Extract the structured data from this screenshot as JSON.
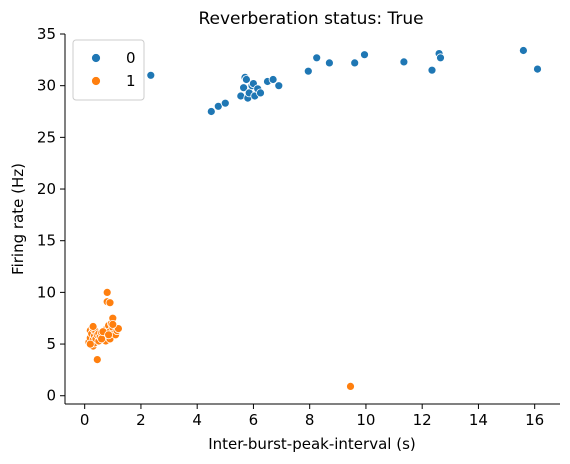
{
  "chart_data": {
    "type": "scatter",
    "title": "Reverberation status: True",
    "xlabel": "Inter-burst-peak-interval (s)",
    "ylabel": "Firing rate (Hz)",
    "xlim": [
      -0.7,
      16.9
    ],
    "ylim": [
      -0.8,
      35
    ],
    "xticks": [
      0,
      2,
      4,
      6,
      8,
      10,
      12,
      14,
      16
    ],
    "yticks": [
      0,
      5,
      10,
      15,
      20,
      25,
      30,
      35
    ],
    "grid": false,
    "legend": {
      "placement": "top-left",
      "entries": [
        "0",
        "1"
      ]
    },
    "series": [
      {
        "name": "0",
        "color": "#1f77b4",
        "points": [
          [
            2.35,
            31.0
          ],
          [
            4.5,
            27.5
          ],
          [
            4.75,
            28.0
          ],
          [
            5.0,
            28.3
          ],
          [
            5.55,
            29.0
          ],
          [
            5.65,
            29.8
          ],
          [
            5.7,
            30.8
          ],
          [
            5.75,
            30.6
          ],
          [
            5.8,
            28.8
          ],
          [
            5.85,
            29.3
          ],
          [
            5.95,
            30.0
          ],
          [
            6.0,
            30.2
          ],
          [
            6.05,
            29.0
          ],
          [
            6.15,
            29.7
          ],
          [
            6.25,
            29.3
          ],
          [
            6.5,
            30.4
          ],
          [
            6.7,
            30.6
          ],
          [
            6.9,
            30.0
          ],
          [
            7.95,
            31.4
          ],
          [
            8.25,
            32.7
          ],
          [
            8.7,
            32.2
          ],
          [
            9.6,
            32.2
          ],
          [
            9.95,
            33.0
          ],
          [
            11.35,
            32.3
          ],
          [
            12.35,
            31.5
          ],
          [
            12.6,
            33.1
          ],
          [
            12.65,
            32.7
          ],
          [
            15.6,
            33.4
          ],
          [
            16.1,
            31.6
          ]
        ]
      },
      {
        "name": "1",
        "color": "#ff7f0e",
        "points": [
          [
            0.15,
            5.2
          ],
          [
            0.2,
            6.3
          ],
          [
            0.2,
            5.6
          ],
          [
            0.25,
            5.0
          ],
          [
            0.25,
            6.0
          ],
          [
            0.3,
            5.4
          ],
          [
            0.3,
            4.8
          ],
          [
            0.3,
            6.5
          ],
          [
            0.35,
            5.8
          ],
          [
            0.35,
            5.1
          ],
          [
            0.4,
            6.2
          ],
          [
            0.4,
            5.5
          ],
          [
            0.45,
            3.5
          ],
          [
            0.45,
            5.9
          ],
          [
            0.5,
            5.3
          ],
          [
            0.5,
            6.0
          ],
          [
            0.55,
            5.7
          ],
          [
            0.6,
            6.1
          ],
          [
            0.7,
            5.6
          ],
          [
            0.75,
            6.4
          ],
          [
            0.75,
            5.3
          ],
          [
            0.8,
            10.0
          ],
          [
            0.8,
            9.1
          ],
          [
            0.85,
            6.8
          ],
          [
            0.9,
            9.0
          ],
          [
            0.9,
            6.2
          ],
          [
            0.9,
            5.5
          ],
          [
            0.95,
            7.0
          ],
          [
            1.0,
            7.5
          ],
          [
            1.0,
            6.6
          ],
          [
            1.05,
            6.0
          ],
          [
            1.1,
            5.9
          ],
          [
            1.15,
            6.3
          ],
          [
            1.2,
            6.5
          ],
          [
            0.2,
            5.0
          ],
          [
            0.3,
            6.7
          ],
          [
            0.6,
            5.5
          ],
          [
            0.65,
            6.2
          ],
          [
            0.85,
            5.9
          ],
          [
            1.0,
            6.9
          ],
          [
            9.45,
            0.9
          ]
        ]
      }
    ]
  }
}
